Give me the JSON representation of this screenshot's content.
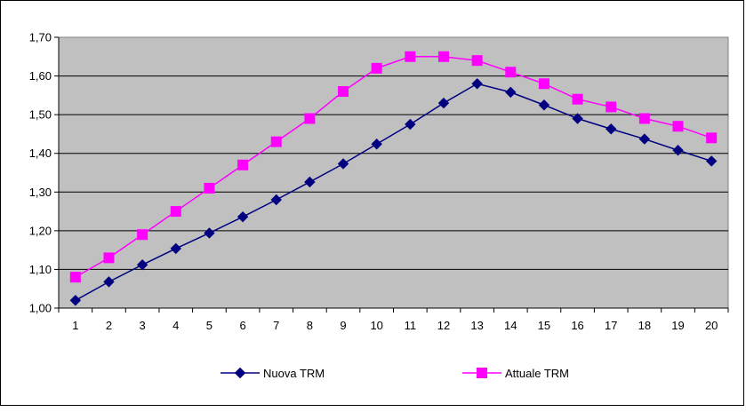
{
  "chart_data": {
    "type": "line",
    "title": "",
    "xlabel": "",
    "ylabel": "",
    "x": [
      1,
      2,
      3,
      4,
      5,
      6,
      7,
      8,
      9,
      10,
      11,
      12,
      13,
      14,
      15,
      16,
      17,
      18,
      19,
      20
    ],
    "x_tick_labels": [
      "1",
      "2",
      "3",
      "4",
      "5",
      "6",
      "7",
      "8",
      "9",
      "10",
      "11",
      "12",
      "13",
      "14",
      "15",
      "16",
      "17",
      "18",
      "19",
      "20"
    ],
    "ylim": [
      1.0,
      1.7
    ],
    "y_ticks": [
      1.0,
      1.1,
      1.2,
      1.3,
      1.4,
      1.5,
      1.6,
      1.7
    ],
    "y_tick_labels": [
      "1,00",
      "1,10",
      "1,20",
      "1,30",
      "1,40",
      "1,50",
      "1,60",
      "1,70"
    ],
    "grid": "horizontal",
    "plot_background": "#c0c0c0",
    "legend_position": "bottom",
    "series": [
      {
        "name": "Nuova TRM",
        "color": "#000080",
        "marker": "diamond",
        "values": [
          1.02,
          1.068,
          1.112,
          1.154,
          1.194,
          1.236,
          1.28,
          1.326,
          1.373,
          1.424,
          1.475,
          1.53,
          1.58,
          1.558,
          1.525,
          1.49,
          1.463,
          1.437,
          1.408,
          1.38
        ]
      },
      {
        "name": "Attuale TRM",
        "color": "#ff00ff",
        "marker": "square",
        "values": [
          1.08,
          1.13,
          1.19,
          1.25,
          1.31,
          1.37,
          1.43,
          1.49,
          1.56,
          1.62,
          1.65,
          1.65,
          1.64,
          1.61,
          1.58,
          1.54,
          1.52,
          1.49,
          1.47,
          1.44
        ]
      }
    ]
  }
}
